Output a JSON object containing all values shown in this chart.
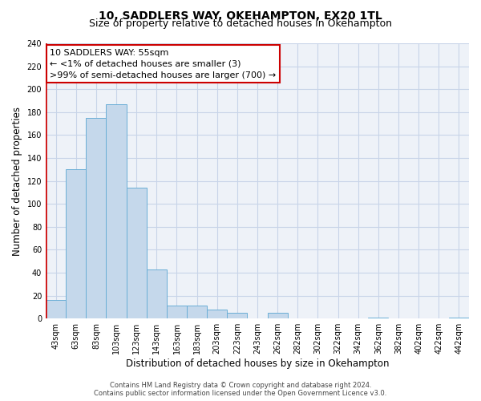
{
  "title": "10, SADDLERS WAY, OKEHAMPTON, EX20 1TL",
  "subtitle": "Size of property relative to detached houses in Okehampton",
  "xlabel": "Distribution of detached houses by size in Okehampton",
  "ylabel": "Number of detached properties",
  "footer_line1": "Contains HM Land Registry data © Crown copyright and database right 2024.",
  "footer_line2": "Contains public sector information licensed under the Open Government Licence v3.0.",
  "bar_labels": [
    "43sqm",
    "63sqm",
    "83sqm",
    "103sqm",
    "123sqm",
    "143sqm",
    "163sqm",
    "183sqm",
    "203sqm",
    "223sqm",
    "243sqm",
    "262sqm",
    "282sqm",
    "302sqm",
    "322sqm",
    "342sqm",
    "362sqm",
    "382sqm",
    "402sqm",
    "422sqm",
    "442sqm"
  ],
  "bar_values": [
    16,
    130,
    175,
    187,
    114,
    43,
    11,
    11,
    8,
    5,
    0,
    5,
    0,
    0,
    0,
    0,
    1,
    0,
    0,
    0,
    1
  ],
  "bar_color": "#c5d8eb",
  "bar_edge_color": "#6aaed6",
  "highlight_color": "#cc0000",
  "annotation_line1": "10 SADDLERS WAY: 55sqm",
  "annotation_line2": "← <1% of detached houses are smaller (3)",
  "annotation_line3": ">99% of semi-detached houses are larger (700) →",
  "ylim": [
    0,
    240
  ],
  "yticks": [
    0,
    20,
    40,
    60,
    80,
    100,
    120,
    140,
    160,
    180,
    200,
    220,
    240
  ],
  "background_color": "#ffffff",
  "plot_bg_color": "#eef2f8",
  "grid_color": "#c8d4e8",
  "title_fontsize": 10,
  "subtitle_fontsize": 9,
  "axis_label_fontsize": 8.5,
  "tick_fontsize": 7,
  "annotation_fontsize": 8,
  "footer_fontsize": 6
}
